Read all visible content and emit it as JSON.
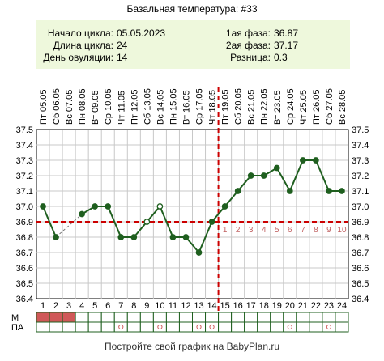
{
  "chart_data": {
    "type": "line",
    "title": "Базальная температура: #33",
    "info": {
      "left": [
        {
          "label": "Начало цикла:",
          "value": "05.05.2023"
        },
        {
          "label": "Длина цикла:",
          "value": "24"
        },
        {
          "label": "День овуляции:",
          "value": "14"
        }
      ],
      "right": [
        {
          "label": "1ая фаза:",
          "value": "36.87"
        },
        {
          "label": "2ая фаза:",
          "value": "37.17"
        },
        {
          "label": "Разница:",
          "value": "0.3"
        }
      ]
    },
    "dates": [
      "Пт 05.05",
      "Сб 06.05",
      "Вс 07.05",
      "Пн 08.05",
      "Вт 09.05",
      "Ср 10.05",
      "Чт 11.05",
      "Пт 12.05",
      "Сб 13.05",
      "Вс 14.05",
      "Пн 15.05",
      "Вт 16.05",
      "Ср 17.05",
      "Чт 18.05",
      "Пт 19.05",
      "Сб 20.05",
      "Вс 21.05",
      "Пн 22.05",
      "Вт 23.05",
      "Ср 24.05",
      "Чт 25.05",
      "Пт 26.05",
      "Сб 27.05",
      "Вс 28.05"
    ],
    "x": [
      1,
      2,
      3,
      4,
      5,
      6,
      7,
      8,
      9,
      10,
      11,
      12,
      13,
      14,
      15,
      16,
      17,
      18,
      19,
      20,
      21,
      22,
      23,
      24
    ],
    "values": [
      37.0,
      36.8,
      null,
      36.95,
      37.0,
      37.0,
      36.8,
      36.8,
      36.9,
      37.0,
      36.8,
      36.8,
      36.7,
      36.9,
      37.0,
      37.1,
      37.2,
      37.2,
      37.25,
      37.1,
      37.3,
      37.3,
      37.1,
      37.1
    ],
    "hollow_days": [
      9,
      10
    ],
    "gap_days": [
      3
    ],
    "ylim": [
      36.4,
      37.5
    ],
    "yticks": [
      "37.5",
      "37.4",
      "37.3",
      "37.2",
      "37.1",
      "37.0",
      "36.9",
      "36.8",
      "36.7",
      "36.6",
      "36.5",
      "36.4"
    ],
    "coverline": 36.9,
    "ovulation_day": 14,
    "luteal_days": [
      "1",
      "2",
      "3",
      "4",
      "5",
      "6",
      "7",
      "8",
      "9",
      "10"
    ],
    "grid": true,
    "colors": {
      "line": "#1f5f1f",
      "coverline": "#cc0000",
      "luteal_label": "#c06060",
      "header_bg": "#eef8dc",
      "menses": "#d05858",
      "marker": "#d06060"
    },
    "rows": [
      {
        "label": "М",
        "days": [
          1,
          2,
          3
        ]
      },
      {
        "label": "ПА",
        "days": [
          7,
          10,
          13,
          14,
          20,
          23
        ]
      }
    ]
  },
  "footer": "Постройте свой график на BabyPlan.ru"
}
